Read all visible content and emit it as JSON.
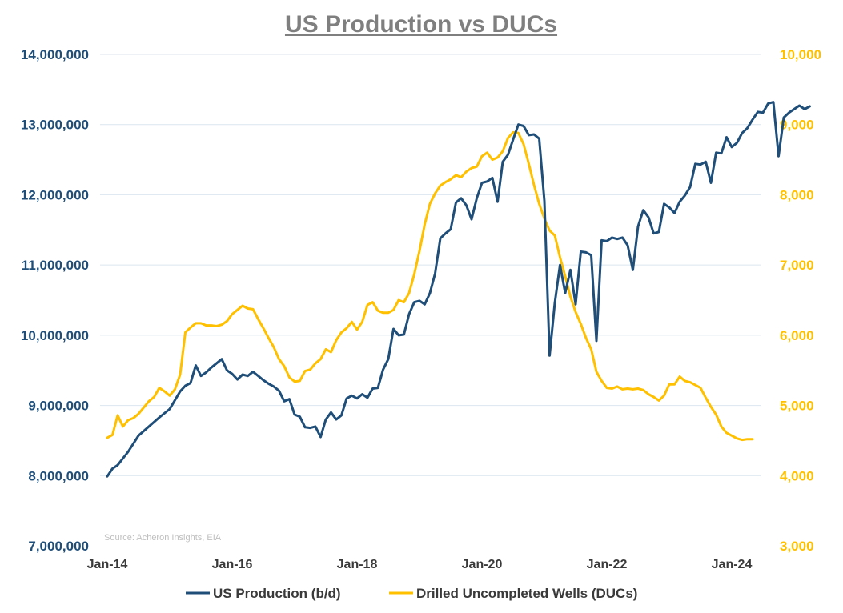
{
  "chart_data": {
    "type": "line",
    "title": "US Production vs DUCs",
    "source": "Source: Acheron Insights, EIA",
    "x_ticks": [
      "Jan-14",
      "Jan-16",
      "Jan-18",
      "Jan-20",
      "Jan-22",
      "Jan-24"
    ],
    "y_left": {
      "ticks": [
        "7,000,000",
        "8,000,000",
        "9,000,000",
        "10,000,000",
        "11,000,000",
        "12,000,000",
        "13,000,000",
        "14,000,000"
      ],
      "range": [
        7000000,
        14000000
      ]
    },
    "y_right": {
      "ticks": [
        "3,000",
        "4,000",
        "5,000",
        "6,000",
        "7,000",
        "8,000",
        "9,000",
        "10,000"
      ],
      "range": [
        3000,
        10000
      ]
    },
    "grid": true,
    "legend_position": "bottom",
    "colors": {
      "production": "#1f4e79",
      "ducs": "#ffc000"
    },
    "series": [
      {
        "name": "US Production (b/d)",
        "axis": "left",
        "points": [
          [
            "2014-01",
            7990000
          ],
          [
            "2014-02",
            8100000
          ],
          [
            "2014-03",
            8150000
          ],
          [
            "2014-05",
            8340000
          ],
          [
            "2014-07",
            8570000
          ],
          [
            "2014-09",
            8700000
          ],
          [
            "2014-11",
            8830000
          ],
          [
            "2015-01",
            8950000
          ],
          [
            "2015-03",
            9200000
          ],
          [
            "2015-04",
            9280000
          ],
          [
            "2015-05",
            9320000
          ],
          [
            "2015-06",
            9570000
          ],
          [
            "2015-07",
            9420000
          ],
          [
            "2015-08",
            9470000
          ],
          [
            "2015-09",
            9540000
          ],
          [
            "2015-10",
            9600000
          ],
          [
            "2015-11",
            9660000
          ],
          [
            "2015-12",
            9500000
          ],
          [
            "2016-01",
            9450000
          ],
          [
            "2016-02",
            9370000
          ],
          [
            "2016-03",
            9440000
          ],
          [
            "2016-04",
            9420000
          ],
          [
            "2016-05",
            9480000
          ],
          [
            "2016-06",
            9420000
          ],
          [
            "2016-07",
            9360000
          ],
          [
            "2016-08",
            9310000
          ],
          [
            "2016-09",
            9270000
          ],
          [
            "2016-10",
            9210000
          ],
          [
            "2016-11",
            9060000
          ],
          [
            "2016-12",
            9090000
          ],
          [
            "2017-01",
            8870000
          ],
          [
            "2017-02",
            8840000
          ],
          [
            "2017-03",
            8690000
          ],
          [
            "2017-04",
            8680000
          ],
          [
            "2017-05",
            8700000
          ],
          [
            "2017-06",
            8550000
          ],
          [
            "2017-07",
            8800000
          ],
          [
            "2017-08",
            8900000
          ],
          [
            "2017-09",
            8800000
          ],
          [
            "2017-10",
            8860000
          ],
          [
            "2017-11",
            9100000
          ],
          [
            "2017-12",
            9140000
          ],
          [
            "2018-01",
            9100000
          ],
          [
            "2018-02",
            9160000
          ],
          [
            "2018-03",
            9110000
          ],
          [
            "2018-04",
            9240000
          ],
          [
            "2018-05",
            9250000
          ],
          [
            "2018-06",
            9510000
          ],
          [
            "2018-07",
            9660000
          ],
          [
            "2018-08",
            10090000
          ],
          [
            "2018-09",
            10000000
          ],
          [
            "2018-10",
            10010000
          ],
          [
            "2018-11",
            10300000
          ],
          [
            "2018-12",
            10470000
          ],
          [
            "2019-01",
            10490000
          ],
          [
            "2019-02",
            10440000
          ],
          [
            "2019-03",
            10600000
          ],
          [
            "2019-04",
            10880000
          ],
          [
            "2019-05",
            11380000
          ],
          [
            "2019-06",
            11450000
          ],
          [
            "2019-07",
            11510000
          ],
          [
            "2019-08",
            11890000
          ],
          [
            "2019-09",
            11950000
          ],
          [
            "2019-10",
            11850000
          ],
          [
            "2019-11",
            11650000
          ],
          [
            "2019-12",
            11950000
          ],
          [
            "2020-01",
            12170000
          ],
          [
            "2020-02",
            12190000
          ],
          [
            "2020-03",
            12240000
          ],
          [
            "2020-04",
            11900000
          ],
          [
            "2020-05",
            12470000
          ],
          [
            "2020-06",
            12570000
          ],
          [
            "2020-07",
            12790000
          ],
          [
            "2020-08",
            13000000
          ],
          [
            "2020-09",
            12980000
          ],
          [
            "2020-10",
            12850000
          ],
          [
            "2020-11",
            12860000
          ],
          [
            "2020-12",
            12800000
          ],
          [
            "2021-01",
            11910000
          ],
          [
            "2021-02",
            9710000
          ],
          [
            "2021-03",
            10460000
          ],
          [
            "2021-04",
            11000000
          ],
          [
            "2021-05",
            10600000
          ],
          [
            "2021-06",
            10930000
          ],
          [
            "2021-07",
            10440000
          ],
          [
            "2021-08",
            11190000
          ],
          [
            "2021-09",
            11180000
          ],
          [
            "2021-10",
            11140000
          ],
          [
            "2021-11",
            9920000
          ],
          [
            "2021-12",
            11350000
          ],
          [
            "2022-01",
            11340000
          ],
          [
            "2022-02",
            11390000
          ],
          [
            "2022-03",
            11370000
          ],
          [
            "2022-04",
            11390000
          ],
          [
            "2022-05",
            11280000
          ],
          [
            "2022-06",
            10930000
          ],
          [
            "2022-07",
            11550000
          ],
          [
            "2022-08",
            11780000
          ],
          [
            "2022-09",
            11680000
          ],
          [
            "2022-10",
            11450000
          ],
          [
            "2022-11",
            11470000
          ],
          [
            "2022-12",
            11870000
          ],
          [
            "2023-01",
            11820000
          ],
          [
            "2023-02",
            11740000
          ],
          [
            "2023-03",
            11900000
          ],
          [
            "2023-04",
            11990000
          ],
          [
            "2023-05",
            12110000
          ],
          [
            "2023-06",
            12440000
          ],
          [
            "2023-07",
            12430000
          ],
          [
            "2023-08",
            12470000
          ],
          [
            "2023-09",
            12170000
          ],
          [
            "2023-10",
            12600000
          ],
          [
            "2023-11",
            12590000
          ],
          [
            "2023-12",
            12820000
          ],
          [
            "2024-01",
            12680000
          ],
          [
            "2024-02",
            12740000
          ],
          [
            "2024-03",
            12880000
          ],
          [
            "2024-04",
            12950000
          ],
          [
            "2024-05",
            13070000
          ],
          [
            "2024-06",
            13180000
          ],
          [
            "2024-07",
            13170000
          ],
          [
            "2024-08",
            13300000
          ],
          [
            "2024-09",
            13320000
          ],
          [
            "2024-10",
            12550000
          ],
          [
            "2024-11",
            13100000
          ],
          [
            "2024-12",
            13170000
          ],
          [
            "2025-01",
            13220000
          ],
          [
            "2025-02",
            13270000
          ],
          [
            "2025-03",
            13220000
          ],
          [
            "2025-04",
            13260000
          ]
        ]
      },
      {
        "name": "Drilled Uncompleted Wells (DUCs)",
        "axis": "right",
        "points": [
          [
            "2014-01",
            4540
          ],
          [
            "2014-02",
            4580
          ],
          [
            "2014-03",
            4860
          ],
          [
            "2014-04",
            4700
          ],
          [
            "2014-05",
            4790
          ],
          [
            "2014-06",
            4820
          ],
          [
            "2014-07",
            4880
          ],
          [
            "2014-08",
            4970
          ],
          [
            "2014-09",
            5060
          ],
          [
            "2014-10",
            5120
          ],
          [
            "2014-11",
            5250
          ],
          [
            "2014-12",
            5200
          ],
          [
            "2015-01",
            5140
          ],
          [
            "2015-02",
            5230
          ],
          [
            "2015-03",
            5440
          ],
          [
            "2015-04",
            6040
          ],
          [
            "2015-05",
            6110
          ],
          [
            "2015-06",
            6170
          ],
          [
            "2015-07",
            6170
          ],
          [
            "2015-08",
            6140
          ],
          [
            "2015-09",
            6140
          ],
          [
            "2015-10",
            6130
          ],
          [
            "2015-11",
            6150
          ],
          [
            "2015-12",
            6200
          ],
          [
            "2016-01",
            6300
          ],
          [
            "2016-02",
            6360
          ],
          [
            "2016-03",
            6420
          ],
          [
            "2016-04",
            6380
          ],
          [
            "2016-05",
            6370
          ],
          [
            "2016-06",
            6230
          ],
          [
            "2016-07",
            6100
          ],
          [
            "2016-08",
            5960
          ],
          [
            "2016-09",
            5830
          ],
          [
            "2016-10",
            5660
          ],
          [
            "2016-11",
            5560
          ],
          [
            "2016-12",
            5400
          ],
          [
            "2017-01",
            5340
          ],
          [
            "2017-02",
            5350
          ],
          [
            "2017-03",
            5490
          ],
          [
            "2017-04",
            5510
          ],
          [
            "2017-05",
            5600
          ],
          [
            "2017-06",
            5660
          ],
          [
            "2017-07",
            5800
          ],
          [
            "2017-08",
            5760
          ],
          [
            "2017-09",
            5930
          ],
          [
            "2017-10",
            6040
          ],
          [
            "2017-11",
            6100
          ],
          [
            "2017-12",
            6190
          ],
          [
            "2018-01",
            6080
          ],
          [
            "2018-02",
            6190
          ],
          [
            "2018-03",
            6430
          ],
          [
            "2018-04",
            6470
          ],
          [
            "2018-05",
            6350
          ],
          [
            "2018-06",
            6320
          ],
          [
            "2018-07",
            6320
          ],
          [
            "2018-08",
            6360
          ],
          [
            "2018-09",
            6500
          ],
          [
            "2018-10",
            6470
          ],
          [
            "2018-11",
            6600
          ],
          [
            "2018-12",
            6870
          ],
          [
            "2019-01",
            7200
          ],
          [
            "2019-02",
            7580
          ],
          [
            "2019-03",
            7870
          ],
          [
            "2019-04",
            8020
          ],
          [
            "2019-05",
            8130
          ],
          [
            "2019-06",
            8180
          ],
          [
            "2019-07",
            8220
          ],
          [
            "2019-08",
            8280
          ],
          [
            "2019-09",
            8250
          ],
          [
            "2019-10",
            8330
          ],
          [
            "2019-11",
            8380
          ],
          [
            "2019-12",
            8400
          ],
          [
            "2020-01",
            8550
          ],
          [
            "2020-02",
            8600
          ],
          [
            "2020-03",
            8500
          ],
          [
            "2020-04",
            8530
          ],
          [
            "2020-05",
            8620
          ],
          [
            "2020-06",
            8810
          ],
          [
            "2020-07",
            8890
          ],
          [
            "2020-08",
            8880
          ],
          [
            "2020-09",
            8720
          ],
          [
            "2020-10",
            8440
          ],
          [
            "2020-11",
            8140
          ],
          [
            "2020-12",
            7870
          ],
          [
            "2021-01",
            7660
          ],
          [
            "2021-02",
            7490
          ],
          [
            "2021-03",
            7420
          ],
          [
            "2021-04",
            7110
          ],
          [
            "2021-05",
            6840
          ],
          [
            "2021-06",
            6550
          ],
          [
            "2021-07",
            6330
          ],
          [
            "2021-08",
            6160
          ],
          [
            "2021-09",
            5960
          ],
          [
            "2021-10",
            5800
          ],
          [
            "2021-11",
            5480
          ],
          [
            "2021-12",
            5350
          ],
          [
            "2022-01",
            5250
          ],
          [
            "2022-02",
            5240
          ],
          [
            "2022-03",
            5270
          ],
          [
            "2022-04",
            5230
          ],
          [
            "2022-05",
            5240
          ],
          [
            "2022-06",
            5230
          ],
          [
            "2022-07",
            5240
          ],
          [
            "2022-08",
            5220
          ],
          [
            "2022-09",
            5160
          ],
          [
            "2022-10",
            5120
          ],
          [
            "2022-11",
            5070
          ],
          [
            "2022-12",
            5140
          ],
          [
            "2023-01",
            5300
          ],
          [
            "2023-02",
            5300
          ],
          [
            "2023-03",
            5410
          ],
          [
            "2023-04",
            5350
          ],
          [
            "2023-05",
            5330
          ],
          [
            "2023-06",
            5290
          ],
          [
            "2023-07",
            5250
          ],
          [
            "2023-08",
            5110
          ],
          [
            "2023-09",
            4980
          ],
          [
            "2023-10",
            4870
          ],
          [
            "2023-11",
            4700
          ],
          [
            "2023-12",
            4610
          ],
          [
            "2024-01",
            4570
          ],
          [
            "2024-02",
            4530
          ],
          [
            "2024-03",
            4510
          ],
          [
            "2024-04",
            4520
          ],
          [
            "2024-05",
            4520
          ]
        ]
      }
    ]
  }
}
